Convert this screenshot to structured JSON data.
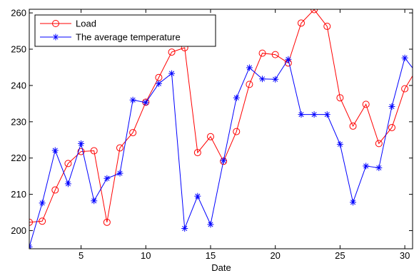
{
  "chart_data": {
    "type": "line",
    "title": "",
    "xlabel": "Date",
    "ylabel": "",
    "xlim": [
      1,
      30.6
    ],
    "ylim": [
      195,
      261
    ],
    "x_ticks": [
      5,
      10,
      15,
      20,
      25,
      30
    ],
    "y_ticks": [
      200,
      210,
      220,
      230,
      240,
      250,
      260
    ],
    "grid": false,
    "legend_position": "top-left",
    "x": [
      1,
      2,
      3,
      4,
      5,
      6,
      7,
      8,
      9,
      10,
      11,
      12,
      13,
      14,
      15,
      16,
      17,
      18,
      19,
      20,
      21,
      22,
      23,
      24,
      25,
      26,
      27,
      28,
      29,
      30,
      31
    ],
    "series": [
      {
        "name": "Load",
        "color": "#ff0000",
        "marker": "circle",
        "values": [
          202.3,
          202.6,
          211.2,
          218.5,
          221.8,
          222.0,
          202.3,
          222.8,
          227.0,
          235.4,
          242.2,
          249.2,
          250.4,
          221.5,
          225.9,
          219.1,
          227.3,
          240.3,
          248.9,
          248.5,
          246.2,
          257.2,
          260.9,
          256.3,
          236.6,
          228.8,
          234.8,
          224.0,
          228.4,
          239.1,
          245.0
        ]
      },
      {
        "name": "The average temperature",
        "color": "#0000ff",
        "marker": "star",
        "values": [
          195.5,
          207.6,
          222.1,
          212.9,
          224.0,
          208.2,
          214.4,
          215.8,
          236.0,
          235.3,
          240.5,
          243.3,
          200.6,
          209.5,
          201.7,
          219.3,
          236.6,
          244.9,
          241.8,
          241.7,
          247.2,
          232.0,
          232.0,
          232.0,
          223.8,
          207.8,
          217.8,
          217.3,
          234.2,
          247.6,
          243.0
        ]
      }
    ]
  }
}
